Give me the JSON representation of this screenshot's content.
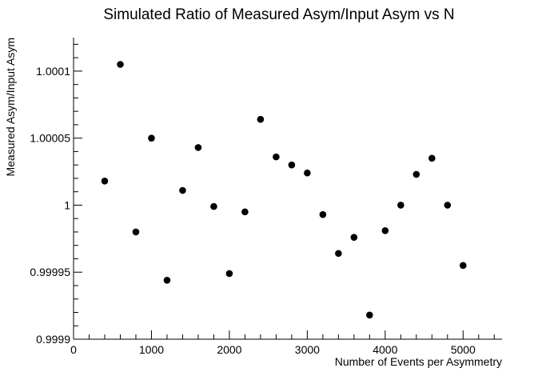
{
  "chart_data": {
    "type": "scatter",
    "title": "Simulated Ratio of Measured Asym/Input Asym vs N",
    "xlabel": "Number of Events per Asymmetry",
    "ylabel": "Measured Asym/Input Asym",
    "xlim": [
      0,
      5500
    ],
    "ylim": [
      0.9999,
      1.000125
    ],
    "x_ticks": [
      0,
      1000,
      2000,
      3000,
      4000,
      5000
    ],
    "x_tick_labels": [
      "0",
      "1000",
      "2000",
      "3000",
      "4000",
      "5000"
    ],
    "y_ticks": [
      0.9999,
      0.99995,
      1.0,
      1.00005,
      1.0001
    ],
    "y_tick_labels": [
      "0.9999",
      "0.99995",
      "1",
      "1.00005",
      "1.0001"
    ],
    "grid": false,
    "legend": "none",
    "series": [
      {
        "x": [
          400,
          600,
          800,
          1000,
          1200,
          1400,
          1600,
          1800,
          2000,
          2200,
          2400,
          2600,
          2800,
          3000,
          3200,
          3400,
          3600,
          3800,
          4000,
          4200,
          4400,
          4600,
          4800,
          5000
        ],
        "y": [
          1.000018,
          1.000105,
          0.99998,
          1.00005,
          0.999944,
          1.000011,
          1.000043,
          0.999999,
          0.999949,
          0.999995,
          1.000064,
          1.000036,
          1.00003,
          1.000024,
          0.999993,
          0.999964,
          0.999976,
          0.999918,
          0.999981,
          1.0,
          1.000023,
          1.000035,
          1.0,
          0.999955
        ]
      }
    ]
  }
}
